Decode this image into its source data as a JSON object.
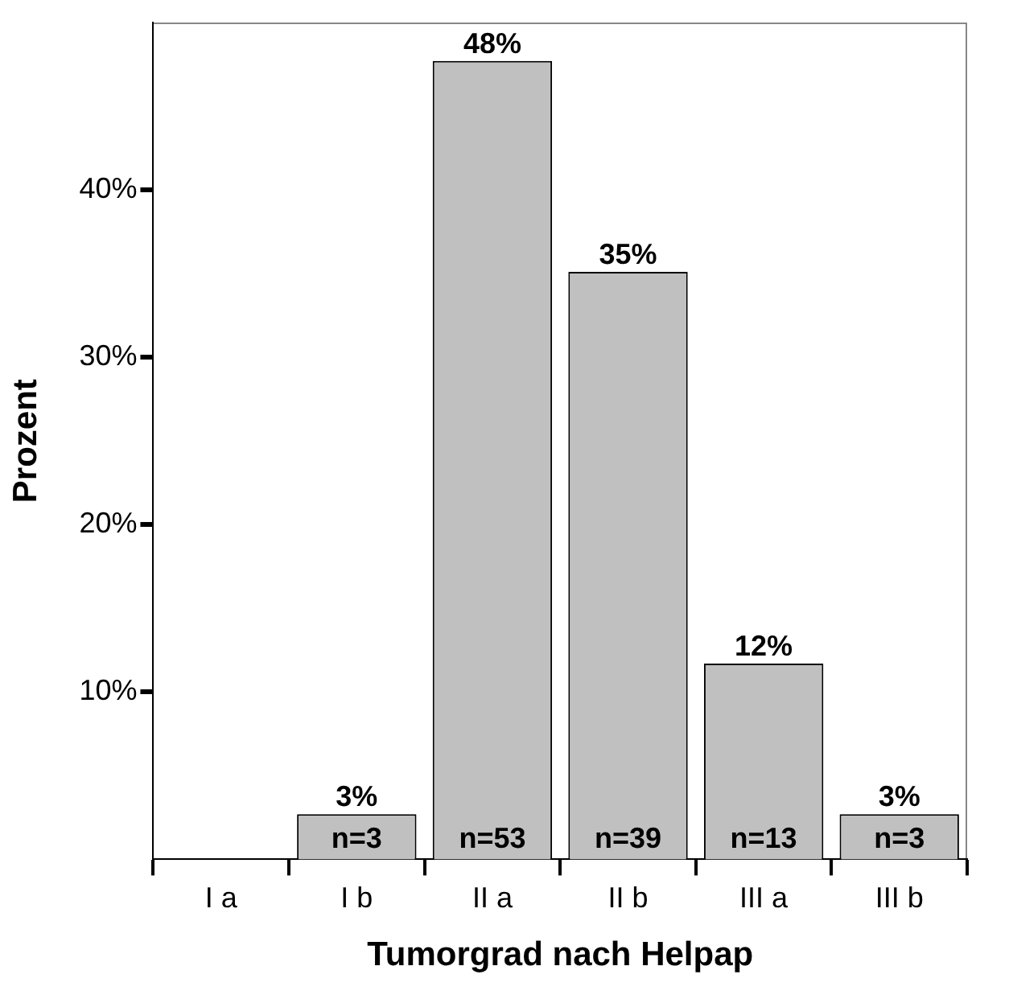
{
  "chart_data": {
    "type": "bar",
    "xlabel": "Tumorgrad nach Helpap",
    "ylabel": "Prozent",
    "categories": [
      "I a",
      "I b",
      "II a",
      "II b",
      "III a",
      "III b"
    ],
    "values": [
      0,
      2.7,
      47.7,
      35.1,
      11.7,
      2.7
    ],
    "value_labels": [
      null,
      "3%",
      "48%",
      "35%",
      "12%",
      "3%"
    ],
    "color": "#c0c0c0",
    "ylim": [
      0,
      50
    ],
    "yticks": [
      {
        "value": 10,
        "label": "10%"
      },
      {
        "value": 20,
        "label": "20%"
      },
      {
        "value": 30,
        "label": "30%"
      },
      {
        "value": 40,
        "label": "40%"
      }
    ],
    "annotations": [
      {
        "text": "n=3",
        "x": "I b",
        "y": 0
      },
      {
        "text": "n=53",
        "x": "II a",
        "y": 0
      },
      {
        "text": "n=39",
        "x": "II b",
        "y": 0
      },
      {
        "text": "n=13",
        "x": "III a",
        "y": 0
      },
      {
        "text": "n=3",
        "x": "III b",
        "y": 0
      }
    ],
    "grid": false,
    "legend": false
  }
}
